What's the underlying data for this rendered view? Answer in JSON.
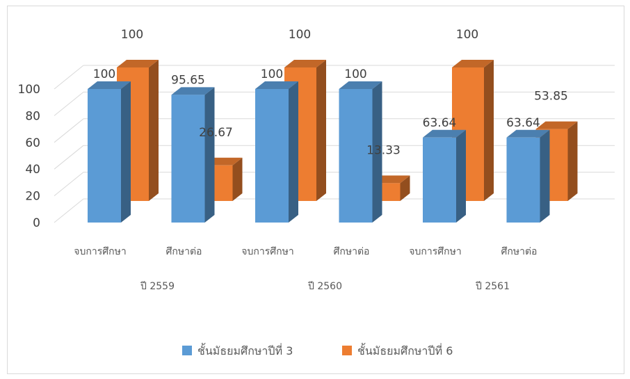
{
  "chart_data": {
    "type": "bar",
    "style": "3d-clustered-column",
    "groups": [
      "ปี 2559",
      "ปี 2560",
      "ปี 2561"
    ],
    "categories": [
      "จบการศึกษา",
      "ศึกษาต่อ",
      "จบการศึกษา",
      "ศึกษาต่อ",
      "จบการศึกษา",
      "ศึกษาต่อ"
    ],
    "series": [
      {
        "name": "ชั้นมัธยมศึกษาปีที่ 3",
        "color": "#5b9bd5",
        "values": [
          100,
          95.65,
          100,
          100,
          63.64,
          63.64
        ],
        "labels": [
          "100",
          "95.65",
          "100",
          "100",
          "63.64",
          "63.64"
        ]
      },
      {
        "name": "ชั้นมัธยมศึกษาปีที่ 6",
        "color": "#ed7d31",
        "values": [
          100,
          26.67,
          100,
          13.33,
          100,
          53.85
        ],
        "labels": [
          "100",
          "26.67",
          "100",
          "13.33",
          "100",
          "53.85"
        ]
      }
    ],
    "yticks": [
      "0",
      "20",
      "40",
      "60",
      "80",
      "100"
    ],
    "ylim": [
      0,
      100
    ],
    "grid": true,
    "legend": "bottom"
  }
}
